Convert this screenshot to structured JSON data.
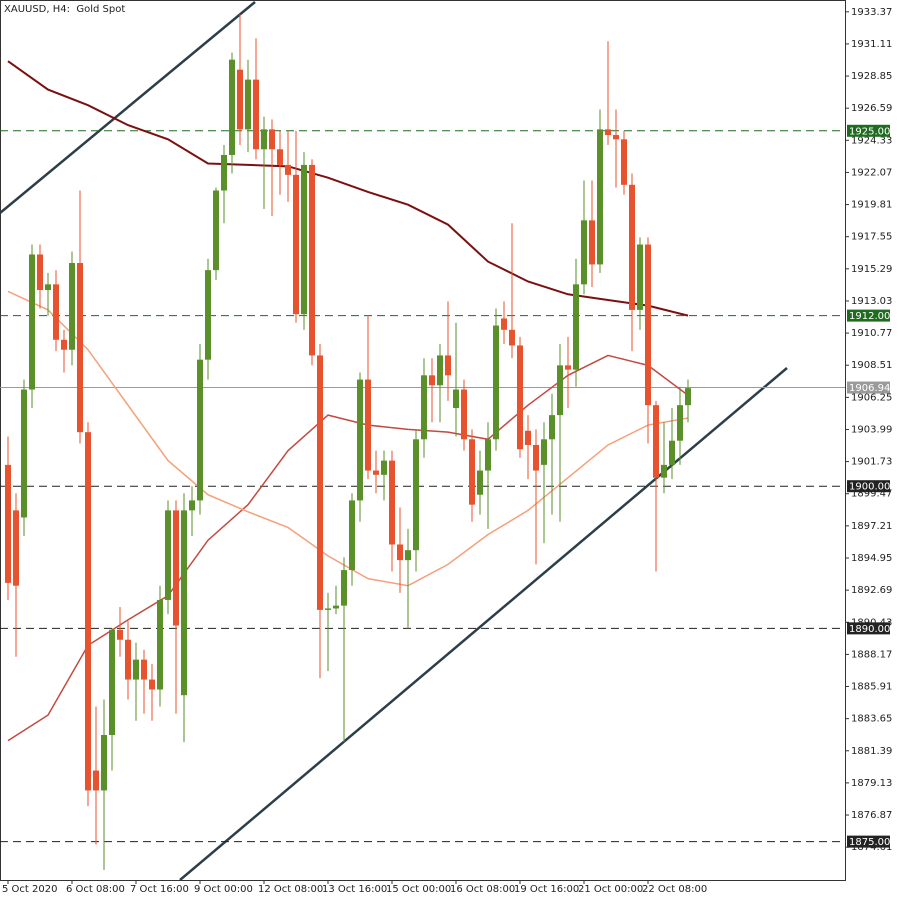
{
  "chart_data": {
    "type": "candlestick",
    "title": "XAUUSD, H4:  Gold Spot",
    "categories": [
      "5 Oct 2020",
      null,
      null,
      null,
      null,
      null,
      null,
      null,
      "6 Oct 08:00",
      null,
      null,
      null,
      null,
      null,
      null,
      null,
      "7 Oct 16:00",
      null,
      null,
      null,
      null,
      null,
      null,
      null,
      "9 Oct 00:00",
      null,
      null,
      null,
      null,
      null,
      null,
      null,
      "12 Oct 08:00",
      null,
      null,
      null,
      null,
      null,
      null,
      null,
      "13 Oct 16:00",
      null,
      null,
      null,
      null,
      null,
      null,
      null,
      "15 Oct 00:00",
      null,
      null,
      null,
      null,
      null,
      null,
      null,
      "16 Oct 08:00",
      null,
      null,
      null,
      null,
      null,
      null,
      null,
      "19 Oct 16:00",
      null,
      null,
      null,
      null,
      null,
      null,
      null,
      "21 Oct 00:00",
      null,
      null,
      null,
      null,
      null,
      null,
      null,
      "22 Oct 08:00",
      null,
      null,
      null,
      null,
      null
    ],
    "open": [
      1901.5,
      1898.3,
      1897.8,
      1906.8,
      1916.3,
      1913.8,
      1914.2,
      1910.3,
      1909.6,
      1915.7,
      1903.8,
      1880.0,
      1878.6,
      1882.5,
      1889.9,
      1889.2,
      1886.4,
      1887.8,
      1886.4,
      1885.7,
      1892.0,
      1898.3,
      1885.3,
      1898.3,
      1899.0,
      1908.9,
      1915.2,
      1920.8,
      1923.3,
      1929.3,
      1925.1,
      1928.6,
      1923.7,
      1925.1,
      1923.7,
      1922.6,
      1921.9,
      1912.1,
      1922.6,
      1909.2,
      1891.3,
      1891.4,
      1891.6,
      1894.1,
      1899.0,
      1907.5,
      1901.1,
      1900.8,
      1901.8,
      1895.9,
      1894.8,
      1895.5,
      1903.3,
      1907.8,
      1907.1,
      1909.2,
      1905.5,
      1906.8,
      1903.3,
      1899.4,
      1901.1,
      1903.3,
      1911.8,
      1911.0,
      1909.9,
      1903.9,
      1902.9,
      1901.5,
      1903.3,
      1905.0,
      1908.5,
      1908.2,
      1914.2,
      1918.7,
      1915.6,
      1925.1,
      1924.7,
      1924.4,
      1921.2,
      1912.4,
      1917.0,
      1905.7,
      1900.6,
      1901.5,
      1903.2,
      1905.7
    ],
    "high": [
      1903.5,
      1899.5,
      1907.5,
      1917.0,
      1917.0,
      1915.0,
      1915.2,
      1911.0,
      1916.5,
      1920.8,
      1904.5,
      1884.5,
      1885.0,
      1890.0,
      1891.5,
      1890.5,
      1889.0,
      1888.5,
      1887.5,
      1893.0,
      1899.0,
      1899.0,
      1899.5,
      1900.0,
      1910.0,
      1916.0,
      1921.0,
      1924.0,
      1930.5,
      1933.2,
      1930.0,
      1931.5,
      1926.0,
      1925.8,
      1925.0,
      1925.0,
      1925.0,
      1923.5,
      1923.0,
      1910.0,
      1892.5,
      1893.0,
      1895.0,
      1899.5,
      1908.0,
      1912.0,
      1902.5,
      1902.5,
      1902.5,
      1898.5,
      1897.0,
      1904.0,
      1909.0,
      1909.0,
      1910.0,
      1913.0,
      1911.5,
      1907.5,
      1904.0,
      1902.5,
      1904.5,
      1912.5,
      1913.0,
      1918.5,
      1910.5,
      1905.0,
      1904.0,
      1904.5,
      1906.5,
      1910.0,
      1910.5,
      1916.0,
      1921.5,
      1921.5,
      1926.5,
      1931.3,
      1926.5,
      1925.0,
      1922.0,
      1917.5,
      1917.5,
      1906.0,
      1904.5,
      1905.5,
      1907.0,
      1907.5
    ],
    "low": [
      1892.0,
      1888.0,
      1896.5,
      1905.5,
      1912.5,
      1912.0,
      1909.5,
      1908.0,
      1908.5,
      1903.0,
      1877.5,
      1874.8,
      1873.0,
      1880.0,
      1888.0,
      1885.0,
      1883.5,
      1884.0,
      1883.5,
      1884.5,
      1891.0,
      1884.0,
      1882.0,
      1896.5,
      1898.0,
      1907.5,
      1914.5,
      1918.5,
      1922.0,
      1924.0,
      1923.5,
      1923.0,
      1919.5,
      1919.0,
      1920.5,
      1920.0,
      1911.5,
      1911.0,
      1908.5,
      1886.5,
      1887.0,
      1891.0,
      1882.0,
      1893.0,
      1897.5,
      1900.5,
      1899.5,
      1899.0,
      1894.0,
      1892.5,
      1890.0,
      1894.0,
      1902.0,
      1904.5,
      1904.5,
      1906.0,
      1903.5,
      1902.5,
      1897.5,
      1898.0,
      1897.0,
      1902.5,
      1910.0,
      1909.0,
      1902.0,
      1900.5,
      1894.5,
      1896.0,
      1898.0,
      1897.5,
      1905.5,
      1907.0,
      1913.5,
      1914.0,
      1915.0,
      1924.0,
      1921.0,
      1920.5,
      1909.5,
      1911.0,
      1903.0,
      1894.0,
      1899.5,
      1900.5,
      1901.5,
      1904.5
    ],
    "close": [
      1893.2,
      1893.0,
      1906.8,
      1916.3,
      1913.8,
      1914.2,
      1910.3,
      1909.6,
      1915.7,
      1903.8,
      1878.6,
      1878.6,
      1882.5,
      1889.9,
      1889.2,
      1886.4,
      1887.8,
      1886.4,
      1885.7,
      1892.0,
      1898.3,
      1890.2,
      1898.3,
      1899.0,
      1908.9,
      1915.2,
      1920.8,
      1923.3,
      1930.0,
      1925.1,
      1928.6,
      1923.7,
      1925.1,
      1923.7,
      1922.6,
      1921.9,
      1912.1,
      1922.6,
      1909.2,
      1891.3,
      1891.4,
      1891.6,
      1894.1,
      1899.0,
      1907.5,
      1901.1,
      1900.8,
      1901.8,
      1895.9,
      1894.8,
      1895.5,
      1903.3,
      1907.8,
      1907.1,
      1909.2,
      1907.8,
      1906.8,
      1903.3,
      1898.7,
      1901.1,
      1903.3,
      1911.3,
      1911.0,
      1909.9,
      1902.6,
      1902.9,
      1901.1,
      1903.3,
      1905.0,
      1908.5,
      1908.2,
      1914.2,
      1918.7,
      1915.6,
      1925.1,
      1924.7,
      1924.4,
      1921.2,
      1912.4,
      1917.0,
      1905.7,
      1900.6,
      1901.5,
      1903.2,
      1905.7,
      1906.9
    ],
    "up_color": "#5a8f2a",
    "down_color": "#e8532f",
    "series": [
      {
        "color": "#7a1010",
        "x": [
          0,
          5,
          10,
          15,
          20,
          25,
          30,
          35,
          40,
          45,
          50,
          55,
          60,
          65,
          70,
          75,
          80,
          85
        ],
        "values": [
          1929.9,
          1927.9,
          1926.8,
          1925.4,
          1924.4,
          1922.7,
          1922.6,
          1922.5,
          1921.7,
          1920.7,
          1919.8,
          1918.4,
          1915.8,
          1914.4,
          1913.5,
          1913.1,
          1912.7,
          1912.0
        ]
      },
      {
        "color": "#c4493f",
        "x": [
          0,
          5,
          10,
          15,
          20,
          25,
          30,
          35,
          40,
          45,
          50,
          55,
          60,
          65,
          70,
          75,
          80,
          85
        ],
        "values": [
          1882.1,
          1883.9,
          1888.8,
          1890.6,
          1892.3,
          1896.2,
          1898.7,
          1902.5,
          1905.0,
          1904.3,
          1904.0,
          1903.8,
          1903.3,
          1905.7,
          1907.8,
          1909.2,
          1908.5,
          1906.4
        ]
      },
      {
        "color": "#f5a07a",
        "x": [
          0,
          5,
          10,
          15,
          20,
          25,
          30,
          35,
          40,
          45,
          50,
          55,
          60,
          65,
          70,
          75,
          80,
          85
        ],
        "values": [
          1913.7,
          1912.4,
          1909.6,
          1905.7,
          1901.8,
          1899.4,
          1898.2,
          1897.1,
          1895.1,
          1893.5,
          1893.0,
          1894.5,
          1896.6,
          1898.3,
          1900.6,
          1902.9,
          1904.3,
          1904.8
        ]
      }
    ],
    "levels": [
      {
        "value": 1925,
        "label": "1925.00",
        "color": "#1f6b1f",
        "style": "dashed"
      },
      {
        "value": 1912,
        "label": "1912.00",
        "color": "#1f6b1f",
        "style": "dashed"
      },
      {
        "value": 1906.94,
        "label": "1906.94",
        "color": "#9a9a9a",
        "style": "solid"
      },
      {
        "value": 1900,
        "label": "1900.00",
        "color": "#222222",
        "style": "dashed"
      },
      {
        "value": 1890,
        "label": "1890.00",
        "color": "#222222",
        "style": "dashed"
      },
      {
        "value": 1875,
        "label": "1875.00",
        "color": "#222222",
        "style": "dashed"
      }
    ],
    "ylim": [
      1872.3,
      1934.2
    ],
    "yticks": [
      1933.37,
      1931.11,
      1928.85,
      1926.59,
      1924.33,
      1922.07,
      1919.81,
      1917.55,
      1915.29,
      1913.03,
      1910.77,
      1908.51,
      1906.25,
      1903.99,
      1901.73,
      1899.47,
      1897.21,
      1894.95,
      1892.69,
      1890.43,
      1888.17,
      1885.91,
      1883.65,
      1881.39,
      1879.13,
      1876.87,
      1874.61
    ]
  }
}
